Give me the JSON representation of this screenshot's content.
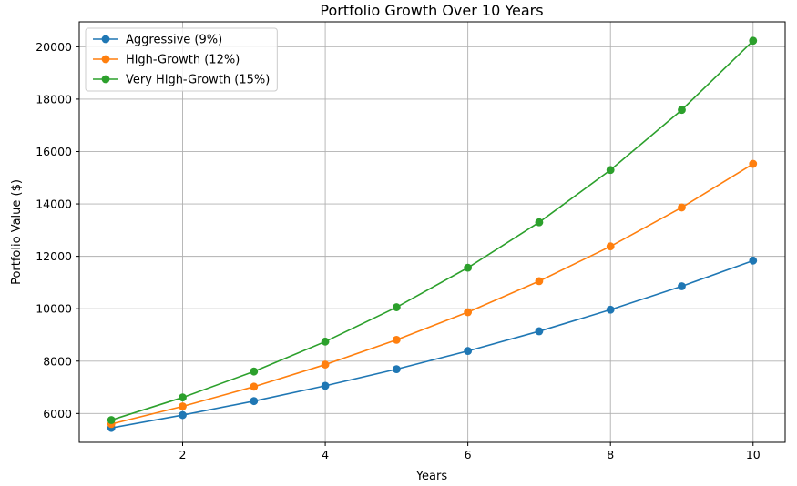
{
  "chart_data": {
    "type": "line",
    "title": "Portfolio Growth Over 10 Years",
    "xlabel": "Years",
    "ylabel": "Portfolio Value ($)",
    "x": [
      1,
      2,
      3,
      4,
      5,
      6,
      7,
      8,
      9,
      10
    ],
    "xlim": [
      0.55,
      10.45
    ],
    "ylim": [
      4900,
      20950
    ],
    "xticks": [
      2,
      4,
      6,
      8,
      10
    ],
    "yticks": [
      6000,
      8000,
      10000,
      12000,
      14000,
      16000,
      18000,
      20000
    ],
    "grid": true,
    "legend_position": "upper-left",
    "series": [
      {
        "name": "Aggressive (9%)",
        "color": "#1f77b4",
        "values": [
          5450,
          5940,
          6475,
          7058,
          7693,
          8386,
          9140,
          9963,
          10859,
          11837
        ]
      },
      {
        "name": "High-Growth (12%)",
        "color": "#ff7f0e",
        "values": [
          5600,
          6272,
          7025,
          7868,
          8812,
          9869,
          11053,
          12380,
          13866,
          15529
        ]
      },
      {
        "name": "Very High-Growth (15%)",
        "color": "#2ca02c",
        "values": [
          5750,
          6613,
          7604,
          8745,
          10057,
          11565,
          13300,
          15295,
          17589,
          20228
        ]
      }
    ]
  }
}
